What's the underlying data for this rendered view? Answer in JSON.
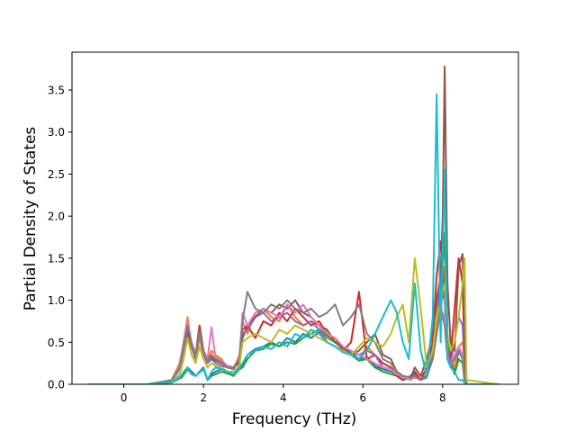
{
  "chart_data": {
    "type": "line",
    "title": "",
    "xlabel": "Frequency (THz)",
    "ylabel": "Partial Density of States",
    "xlim": [
      -1.3,
      9.9
    ],
    "ylim": [
      0.0,
      3.95
    ],
    "xticks": [
      0,
      2,
      4,
      6,
      8
    ],
    "yticks": [
      0.0,
      0.5,
      1.0,
      1.5,
      2.0,
      2.5,
      3.0,
      3.5
    ],
    "grid": false,
    "legend": "none",
    "series": [
      {
        "color": "#1f77b4",
        "x": [
          -0.9,
          0.6,
          1.2,
          1.45,
          1.6,
          1.7,
          1.8,
          1.9,
          2.0,
          2.1,
          2.2,
          2.3,
          2.45,
          2.6,
          2.75,
          2.9,
          2.98,
          3.1,
          3.3,
          3.5,
          3.7,
          3.9,
          4.1,
          4.3,
          4.5,
          4.7,
          4.9,
          5.1,
          5.3,
          5.5,
          5.7,
          5.9,
          6.1,
          6.3,
          6.5,
          6.7,
          6.85,
          7.0,
          7.2,
          7.3,
          7.45,
          7.6,
          7.75,
          7.85,
          7.95,
          8.05,
          8.12,
          8.2,
          8.3,
          8.4,
          8.5,
          8.55,
          8.6,
          9.4
        ],
        "values": [
          0.0,
          0.0,
          0.03,
          0.1,
          0.2,
          0.15,
          0.1,
          0.15,
          0.2,
          0.05,
          0.12,
          0.15,
          0.18,
          0.15,
          0.12,
          0.2,
          0.22,
          0.35,
          0.42,
          0.45,
          0.5,
          0.45,
          0.55,
          0.5,
          0.6,
          0.55,
          0.62,
          0.55,
          0.5,
          0.45,
          0.38,
          0.3,
          0.32,
          0.22,
          0.18,
          0.15,
          0.12,
          0.05,
          0.1,
          0.15,
          0.05,
          0.1,
          0.4,
          0.8,
          1.2,
          2.4,
          0.6,
          0.3,
          0.15,
          0.4,
          0.3,
          0.05,
          0.0,
          0.0
        ]
      },
      {
        "color": "#ff7f0e",
        "x": [
          -0.9,
          0.6,
          1.2,
          1.4,
          1.5,
          1.6,
          1.7,
          1.8,
          1.9,
          2.0,
          2.1,
          2.2,
          2.3,
          2.45,
          2.6,
          2.75,
          2.9,
          2.98,
          3.1,
          3.3,
          3.5,
          3.7,
          3.9,
          4.1,
          4.3,
          4.5,
          4.7,
          4.9,
          5.1,
          5.3,
          5.5,
          5.7,
          5.9,
          6.1,
          6.3,
          6.5,
          6.7,
          6.85,
          7.0,
          7.2,
          7.3,
          7.45,
          7.6,
          7.75,
          7.85,
          7.95,
          8.05,
          8.12,
          8.2,
          8.3,
          8.4,
          8.5,
          8.55,
          8.6,
          9.4
        ],
        "values": [
          0.0,
          0.0,
          0.05,
          0.25,
          0.5,
          0.8,
          0.45,
          0.3,
          0.55,
          0.35,
          0.3,
          0.4,
          0.35,
          0.3,
          0.2,
          0.18,
          0.35,
          0.75,
          0.6,
          0.85,
          0.9,
          0.8,
          0.75,
          0.95,
          0.8,
          0.7,
          0.75,
          0.7,
          0.55,
          0.5,
          0.45,
          0.35,
          0.3,
          0.45,
          0.35,
          0.25,
          0.2,
          0.15,
          0.1,
          0.05,
          0.1,
          0.05,
          0.1,
          0.3,
          0.7,
          1.0,
          1.4,
          0.5,
          0.3,
          0.2,
          0.45,
          0.5,
          0.3,
          0.0,
          0.0
        ]
      },
      {
        "color": "#2ca02c",
        "x": [
          -0.9,
          0.6,
          1.2,
          1.45,
          1.6,
          1.7,
          1.8,
          1.9,
          2.0,
          2.1,
          2.2,
          2.3,
          2.45,
          2.6,
          2.75,
          2.9,
          2.98,
          3.1,
          3.3,
          3.5,
          3.7,
          3.9,
          4.1,
          4.3,
          4.5,
          4.7,
          4.9,
          5.1,
          5.3,
          5.5,
          5.7,
          5.9,
          6.1,
          6.3,
          6.5,
          6.7,
          6.85,
          7.0,
          7.2,
          7.3,
          7.45,
          7.6,
          7.75,
          7.85,
          7.95,
          8.05,
          8.12,
          8.2,
          8.3,
          8.4,
          8.5,
          8.55,
          8.6,
          9.4
        ],
        "values": [
          0.0,
          0.0,
          0.02,
          0.08,
          0.18,
          0.12,
          0.1,
          0.14,
          0.18,
          0.05,
          0.1,
          0.12,
          0.15,
          0.13,
          0.1,
          0.18,
          0.2,
          0.3,
          0.4,
          0.42,
          0.48,
          0.45,
          0.5,
          0.48,
          0.55,
          0.6,
          0.65,
          0.58,
          0.5,
          0.42,
          0.35,
          0.28,
          0.3,
          0.2,
          0.15,
          0.12,
          0.1,
          0.05,
          0.08,
          0.12,
          0.05,
          0.08,
          0.3,
          0.6,
          0.9,
          1.8,
          0.5,
          0.25,
          0.12,
          0.3,
          0.25,
          0.04,
          0.0,
          0.0
        ]
      },
      {
        "color": "#d62728",
        "x": [
          -0.9,
          0.6,
          1.2,
          1.4,
          1.5,
          1.6,
          1.7,
          1.8,
          1.9,
          2.0,
          2.1,
          2.2,
          2.3,
          2.45,
          2.6,
          2.75,
          2.9,
          2.98,
          3.1,
          3.3,
          3.5,
          3.7,
          3.9,
          4.1,
          4.3,
          4.5,
          4.7,
          4.9,
          5.1,
          5.3,
          5.5,
          5.7,
          5.9,
          6.1,
          6.3,
          6.5,
          6.7,
          6.85,
          7.0,
          7.2,
          7.3,
          7.45,
          7.6,
          7.75,
          7.85,
          7.95,
          8.05,
          8.12,
          8.2,
          8.3,
          8.4,
          8.5,
          8.55,
          8.6,
          9.4
        ],
        "values": [
          0.0,
          0.0,
          0.05,
          0.2,
          0.45,
          0.65,
          0.5,
          0.35,
          0.7,
          0.4,
          0.3,
          0.35,
          0.3,
          0.25,
          0.22,
          0.2,
          0.25,
          0.55,
          0.7,
          0.55,
          0.75,
          0.7,
          0.85,
          0.75,
          0.9,
          0.8,
          0.7,
          0.75,
          0.6,
          0.55,
          0.4,
          0.5,
          1.1,
          0.3,
          0.35,
          0.25,
          0.2,
          0.1,
          0.05,
          0.1,
          0.15,
          0.05,
          0.2,
          0.5,
          1.3,
          1.7,
          1.0,
          0.4,
          0.3,
          0.9,
          1.5,
          1.2,
          0.3,
          0.0,
          0.0
        ]
      },
      {
        "color": "#9467bd",
        "x": [
          -0.9,
          0.6,
          1.2,
          1.4,
          1.5,
          1.6,
          1.7,
          1.8,
          1.9,
          2.0,
          2.1,
          2.2,
          2.3,
          2.45,
          2.6,
          2.75,
          2.9,
          2.98,
          3.1,
          3.3,
          3.5,
          3.7,
          3.9,
          4.1,
          4.3,
          4.5,
          4.7,
          4.9,
          5.1,
          5.3,
          5.5,
          5.7,
          5.9,
          6.1,
          6.3,
          6.5,
          6.7,
          6.85,
          7.0,
          7.2,
          7.3,
          7.45,
          7.6,
          7.75,
          7.85,
          7.95,
          8.05,
          8.12,
          8.2,
          8.3,
          8.4,
          8.5,
          8.55,
          8.6,
          9.4
        ],
        "values": [
          0.0,
          0.0,
          0.04,
          0.18,
          0.4,
          0.6,
          0.45,
          0.3,
          0.6,
          0.35,
          0.25,
          0.3,
          0.25,
          0.22,
          0.2,
          0.18,
          0.3,
          0.6,
          0.65,
          0.8,
          0.85,
          0.75,
          0.8,
          0.85,
          0.75,
          0.7,
          0.75,
          0.65,
          0.5,
          0.45,
          0.4,
          0.38,
          0.35,
          0.4,
          0.35,
          0.2,
          0.18,
          0.12,
          0.08,
          0.06,
          0.1,
          0.05,
          0.12,
          0.35,
          0.8,
          1.1,
          1.0,
          0.4,
          0.25,
          0.5,
          0.8,
          0.7,
          0.2,
          0.0,
          0.0
        ]
      },
      {
        "color": "#8c564b",
        "x": [
          -0.9,
          0.6,
          1.2,
          1.4,
          1.5,
          1.6,
          1.7,
          1.8,
          1.9,
          2.0,
          2.1,
          2.2,
          2.3,
          2.45,
          2.6,
          2.75,
          2.9,
          2.98,
          3.1,
          3.3,
          3.5,
          3.7,
          3.9,
          4.1,
          4.3,
          4.5,
          4.7,
          4.9,
          5.1,
          5.3,
          5.5,
          5.7,
          5.9,
          6.1,
          6.3,
          6.5,
          6.7,
          6.85,
          7.0,
          7.2,
          7.3,
          7.45,
          7.6,
          7.75,
          7.85,
          7.95,
          8.0,
          8.05,
          8.12,
          8.2,
          8.3,
          8.4,
          8.5,
          8.55,
          8.6,
          9.4
        ],
        "values": [
          0.0,
          0.0,
          0.05,
          0.22,
          0.45,
          0.6,
          0.45,
          0.32,
          0.65,
          0.4,
          0.28,
          0.32,
          0.28,
          0.25,
          0.2,
          0.2,
          0.28,
          0.65,
          0.7,
          0.8,
          0.9,
          0.85,
          0.95,
          0.9,
          1.0,
          0.85,
          0.8,
          0.7,
          0.65,
          0.5,
          0.45,
          0.35,
          0.4,
          0.5,
          0.6,
          0.35,
          0.3,
          0.15,
          0.1,
          0.08,
          0.2,
          0.1,
          0.3,
          0.6,
          1.0,
          1.3,
          2.0,
          3.78,
          1.2,
          0.5,
          0.4,
          1.4,
          1.55,
          0.4,
          0.0,
          0.0
        ]
      },
      {
        "color": "#e377c2",
        "x": [
          -0.9,
          0.6,
          1.2,
          1.4,
          1.5,
          1.6,
          1.7,
          1.8,
          1.9,
          2.0,
          2.1,
          2.2,
          2.3,
          2.45,
          2.6,
          2.75,
          2.9,
          2.98,
          3.1,
          3.3,
          3.5,
          3.7,
          3.9,
          4.1,
          4.3,
          4.5,
          4.7,
          4.9,
          5.1,
          5.3,
          5.5,
          5.7,
          5.9,
          6.1,
          6.3,
          6.5,
          6.7,
          6.85,
          7.0,
          7.2,
          7.3,
          7.45,
          7.6,
          7.75,
          7.85,
          7.95,
          8.05,
          8.12,
          8.2,
          8.3,
          8.4,
          8.5,
          8.55,
          8.6,
          9.4
        ],
        "values": [
          0.0,
          0.0,
          0.05,
          0.22,
          0.5,
          0.75,
          0.5,
          0.35,
          0.6,
          0.38,
          0.3,
          0.68,
          0.32,
          0.28,
          0.22,
          0.2,
          0.32,
          0.85,
          0.7,
          0.85,
          0.9,
          0.85,
          0.8,
          0.95,
          0.85,
          0.95,
          0.8,
          0.7,
          0.6,
          0.55,
          0.45,
          0.4,
          0.35,
          0.3,
          0.25,
          0.2,
          0.18,
          0.12,
          0.08,
          0.06,
          0.08,
          0.05,
          0.1,
          0.3,
          0.6,
          0.9,
          0.8,
          0.3,
          0.2,
          0.35,
          0.45,
          0.35,
          0.1,
          0.0,
          0.0
        ]
      },
      {
        "color": "#7f7f7f",
        "x": [
          -0.9,
          0.6,
          1.2,
          1.4,
          1.5,
          1.6,
          1.7,
          1.8,
          1.9,
          2.0,
          2.1,
          2.2,
          2.3,
          2.45,
          2.6,
          2.75,
          2.9,
          2.98,
          3.1,
          3.3,
          3.5,
          3.7,
          3.9,
          4.1,
          4.3,
          4.5,
          4.7,
          4.9,
          5.1,
          5.3,
          5.5,
          5.7,
          5.9,
          6.1,
          6.3,
          6.5,
          6.7,
          6.85,
          7.0,
          7.2,
          7.3,
          7.45,
          7.6,
          7.75,
          7.85,
          7.95,
          8.05,
          8.12,
          8.2,
          8.3,
          8.4,
          8.5,
          8.55,
          8.6,
          9.4
        ],
        "values": [
          0.0,
          0.0,
          0.05,
          0.2,
          0.45,
          0.7,
          0.48,
          0.33,
          0.62,
          0.36,
          0.28,
          0.34,
          0.3,
          0.26,
          0.2,
          0.2,
          0.3,
          0.75,
          1.1,
          0.9,
          0.85,
          0.95,
          0.9,
          1.0,
          0.9,
          0.85,
          0.9,
          0.8,
          0.85,
          0.95,
          0.7,
          0.8,
          0.95,
          0.6,
          0.5,
          0.3,
          0.25,
          0.15,
          0.1,
          0.08,
          0.1,
          0.05,
          0.1,
          0.3,
          0.6,
          0.9,
          0.7,
          0.3,
          0.2,
          0.3,
          0.4,
          0.3,
          0.1,
          0.0,
          0.0
        ]
      },
      {
        "color": "#bcbd22",
        "x": [
          -0.9,
          0.6,
          1.2,
          1.4,
          1.5,
          1.6,
          1.7,
          1.8,
          1.9,
          2.0,
          2.1,
          2.2,
          2.3,
          2.45,
          2.6,
          2.75,
          2.9,
          2.98,
          3.1,
          3.3,
          3.5,
          3.7,
          3.9,
          4.1,
          4.3,
          4.5,
          4.7,
          4.9,
          5.1,
          5.3,
          5.5,
          5.7,
          5.9,
          6.1,
          6.3,
          6.5,
          6.7,
          6.85,
          7.0,
          7.15,
          7.3,
          7.45,
          7.6,
          7.75,
          7.85,
          7.95,
          8.05,
          8.12,
          8.2,
          8.3,
          8.4,
          8.5,
          8.55,
          8.6,
          9.4
        ],
        "values": [
          0.0,
          0.0,
          0.03,
          0.12,
          0.3,
          0.55,
          0.35,
          0.25,
          0.45,
          0.3,
          0.2,
          0.25,
          0.22,
          0.2,
          0.15,
          0.15,
          0.22,
          0.5,
          0.55,
          0.6,
          0.55,
          0.5,
          0.65,
          0.6,
          0.7,
          0.65,
          0.6,
          0.55,
          0.5,
          0.45,
          0.4,
          0.35,
          0.45,
          0.55,
          0.5,
          0.45,
          0.6,
          0.8,
          0.95,
          0.5,
          1.5,
          0.9,
          0.2,
          0.4,
          0.8,
          1.0,
          1.2,
          0.6,
          0.4,
          0.5,
          0.8,
          1.2,
          1.5,
          0.05,
          0.0
        ]
      },
      {
        "color": "#17becf",
        "x": [
          -0.9,
          0.6,
          1.2,
          1.4,
          1.5,
          1.6,
          1.7,
          1.8,
          1.9,
          2.0,
          2.1,
          2.2,
          2.3,
          2.45,
          2.6,
          2.75,
          2.9,
          2.98,
          3.1,
          3.3,
          3.5,
          3.7,
          3.9,
          4.1,
          4.3,
          4.5,
          4.7,
          4.9,
          5.1,
          5.3,
          5.5,
          5.7,
          5.9,
          6.1,
          6.3,
          6.5,
          6.7,
          6.85,
          7.0,
          7.15,
          7.3,
          7.45,
          7.6,
          7.75,
          7.85,
          7.95,
          8.05,
          8.12,
          8.2,
          8.3,
          8.4,
          8.5,
          8.55,
          8.6,
          9.4
        ],
        "values": [
          0.0,
          0.0,
          0.03,
          0.08,
          0.15,
          0.2,
          0.12,
          0.1,
          0.14,
          0.18,
          0.05,
          0.15,
          0.2,
          0.18,
          0.15,
          0.12,
          0.2,
          0.25,
          0.35,
          0.4,
          0.45,
          0.42,
          0.5,
          0.45,
          0.6,
          0.55,
          0.65,
          0.6,
          0.5,
          0.45,
          0.38,
          0.35,
          0.3,
          0.4,
          0.6,
          0.8,
          1.0,
          0.85,
          0.5,
          0.3,
          1.2,
          0.4,
          0.1,
          0.8,
          3.45,
          0.5,
          2.55,
          0.3,
          0.2,
          0.15,
          0.05,
          0.05,
          0.02,
          0.0,
          0.0
        ]
      }
    ]
  }
}
